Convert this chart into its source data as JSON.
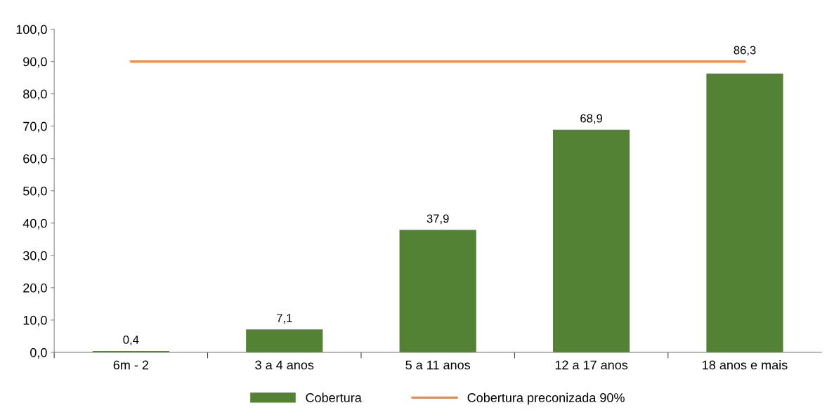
{
  "chart_data": {
    "type": "bar",
    "categories": [
      "6m - 2",
      "3 a 4 anos",
      "5 a 11 anos",
      "12 a 17 anos",
      "18 anos e mais"
    ],
    "series": [
      {
        "name": "Cobertura",
        "type": "bar",
        "color": "#548235",
        "values": [
          0.4,
          7.1,
          37.9,
          68.9,
          86.3
        ],
        "value_labels": [
          "0,4",
          "7,1",
          "37,9",
          "68,9",
          "86,3"
        ]
      },
      {
        "name": "Cobertura preconizada 90%",
        "type": "line",
        "color": "#f08a45",
        "values": [
          90,
          90,
          90,
          90,
          90
        ]
      }
    ],
    "ylim": [
      0,
      100
    ],
    "yticks": [
      {
        "value": 0,
        "label": "0,0"
      },
      {
        "value": 10,
        "label": "10,0"
      },
      {
        "value": 20,
        "label": "20,0"
      },
      {
        "value": 30,
        "label": "30,0"
      },
      {
        "value": 40,
        "label": "40,0"
      },
      {
        "value": 50,
        "label": "50,0"
      },
      {
        "value": 60,
        "label": "60,0"
      },
      {
        "value": 70,
        "label": "70,0"
      },
      {
        "value": 80,
        "label": "80,0"
      },
      {
        "value": 90,
        "label": "90,0"
      },
      {
        "value": 100,
        "label": "100,0"
      }
    ],
    "grid": false,
    "legend": "bottom",
    "marker": "none",
    "line_style": "solid"
  }
}
